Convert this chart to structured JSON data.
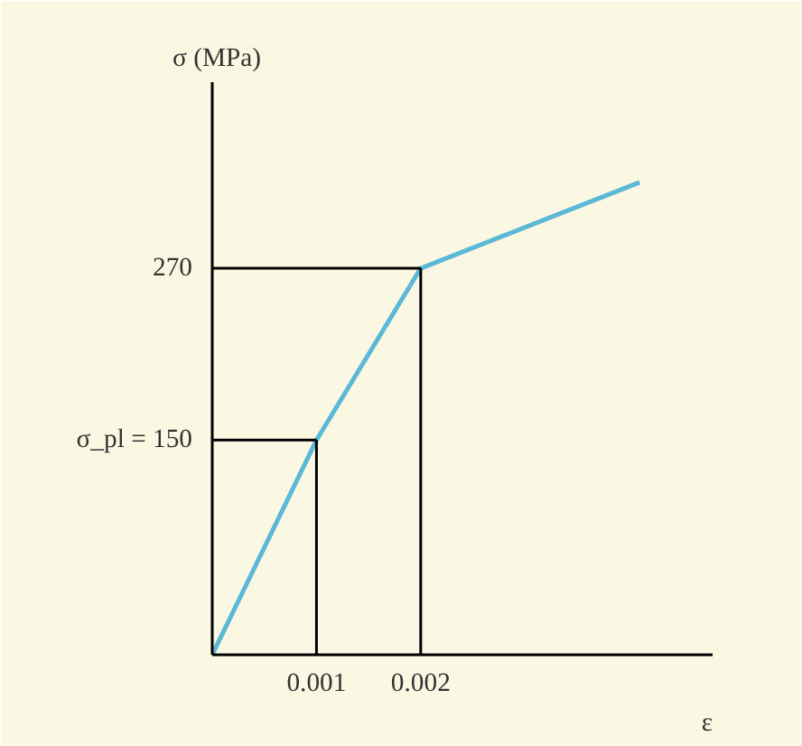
{
  "chart_data": {
    "type": "line",
    "x": [
      0,
      0.001,
      0.002,
      0.0041
    ],
    "series": [
      {
        "color": "#5bb8d6",
        "values": [
          0,
          150,
          270,
          330
        ]
      }
    ],
    "xlabel": "ε",
    "ylabel": "σ (MPa)",
    "xlim": [
      0,
      0.0048
    ],
    "ylim": [
      0,
      400
    ],
    "xticks": [
      0.001,
      0.002
    ],
    "yticks": [
      {
        "value": 150,
        "label": "σ_pl = 150"
      },
      270
    ],
    "ref_lines": [
      {
        "axis": "y",
        "value": 150,
        "color": "#000000"
      },
      {
        "axis": "y",
        "value": 270,
        "color": "#000000"
      },
      {
        "axis": "x",
        "value": 0.001,
        "color": "#000000"
      },
      {
        "axis": "x",
        "value": 0.002,
        "color": "#000000"
      }
    ],
    "grid": false,
    "marker": "none",
    "line_style": "solid"
  }
}
